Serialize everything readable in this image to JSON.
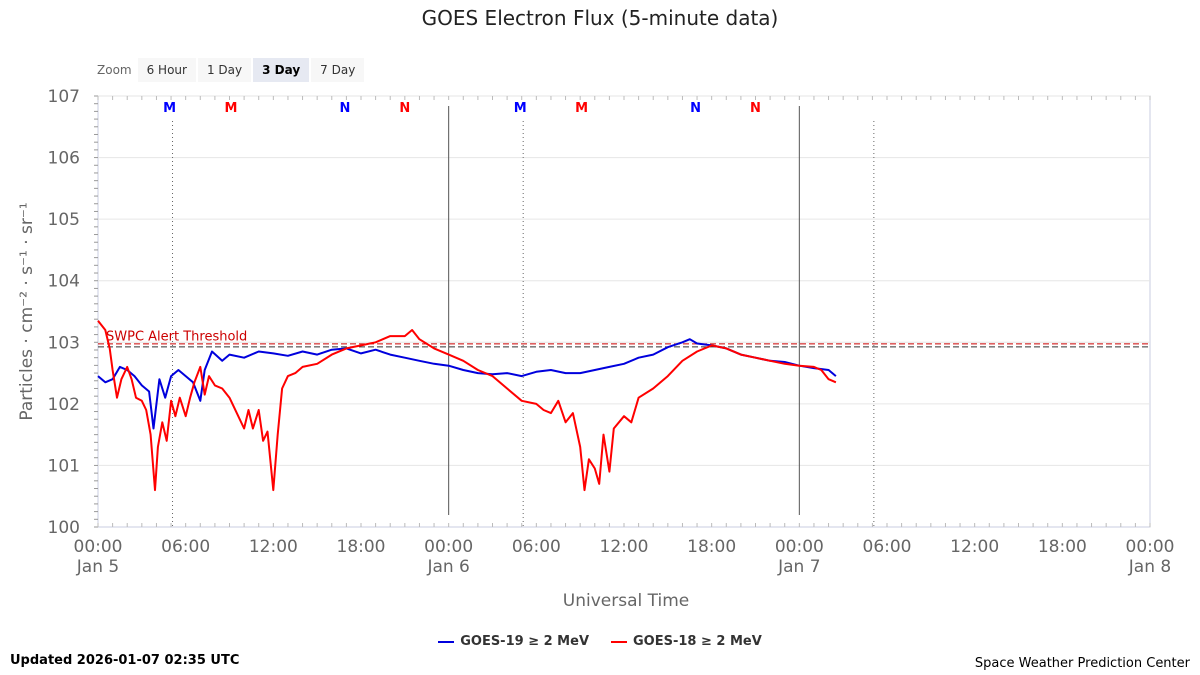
{
  "chart_data": {
    "type": "line",
    "title": "GOES Electron Flux (5-minute data)",
    "xlabel": "Universal Time",
    "ylabel": "Particles · cm⁻² · s⁻¹ · sr⁻¹",
    "y_scale": "log",
    "ylim_exponent": [
      0,
      7
    ],
    "y_ticks": [
      {
        "base": "10",
        "exp": "0"
      },
      {
        "base": "10",
        "exp": "1"
      },
      {
        "base": "10",
        "exp": "2"
      },
      {
        "base": "10",
        "exp": "3"
      },
      {
        "base": "10",
        "exp": "4"
      },
      {
        "base": "10",
        "exp": "5"
      },
      {
        "base": "10",
        "exp": "6"
      },
      {
        "base": "10",
        "exp": "7"
      }
    ],
    "xlim_hours": [
      0,
      72
    ],
    "x_ticks": [
      {
        "hour": 0,
        "time": "00:00",
        "date": "Jan 5"
      },
      {
        "hour": 6,
        "time": "06:00",
        "date": ""
      },
      {
        "hour": 12,
        "time": "12:00",
        "date": ""
      },
      {
        "hour": 18,
        "time": "18:00",
        "date": ""
      },
      {
        "hour": 24,
        "time": "00:00",
        "date": "Jan 6"
      },
      {
        "hour": 30,
        "time": "06:00",
        "date": ""
      },
      {
        "hour": 36,
        "time": "12:00",
        "date": ""
      },
      {
        "hour": 42,
        "time": "18:00",
        "date": ""
      },
      {
        "hour": 48,
        "time": "00:00",
        "date": "Jan 7"
      },
      {
        "hour": 54,
        "time": "06:00",
        "date": ""
      },
      {
        "hour": 60,
        "time": "12:00",
        "date": ""
      },
      {
        "hour": 66,
        "time": "18:00",
        "date": ""
      },
      {
        "hour": 72,
        "time": "00:00",
        "date": "Jan 8"
      }
    ],
    "day_boundaries_hours": [
      24,
      48
    ],
    "local_time_markers": [
      {
        "label": "M",
        "hour": 4.9,
        "color": "#0000ff"
      },
      {
        "label": "M",
        "hour": 9.1,
        "color": "#ff0000"
      },
      {
        "label": "N",
        "hour": 16.9,
        "color": "#0000ff"
      },
      {
        "label": "N",
        "hour": 21.0,
        "color": "#ff0000"
      },
      {
        "label": "M",
        "hour": 28.9,
        "color": "#0000ff"
      },
      {
        "label": "M",
        "hour": 33.1,
        "color": "#ff0000"
      },
      {
        "label": "N",
        "hour": 40.9,
        "color": "#0000ff"
      },
      {
        "label": "N",
        "hour": 45.0,
        "color": "#ff0000"
      }
    ],
    "dotted_lines_hours": [
      5.1,
      29.1,
      53.1
    ],
    "threshold": {
      "label": "SWPC Alert Threshold",
      "exponent": 2.95,
      "color": "#cc0000"
    },
    "series": [
      {
        "name": "GOES-19 ≥ 2 MeV",
        "color": "#0000dd",
        "points": [
          [
            0,
            2.45
          ],
          [
            0.5,
            2.35
          ],
          [
            1,
            2.4
          ],
          [
            1.5,
            2.6
          ],
          [
            2,
            2.55
          ],
          [
            2.5,
            2.45
          ],
          [
            3,
            2.3
          ],
          [
            3.5,
            2.2
          ],
          [
            3.8,
            1.6
          ],
          [
            4.2,
            2.4
          ],
          [
            4.6,
            2.1
          ],
          [
            5,
            2.45
          ],
          [
            5.5,
            2.55
          ],
          [
            6,
            2.45
          ],
          [
            6.5,
            2.35
          ],
          [
            7,
            2.05
          ],
          [
            7.3,
            2.55
          ],
          [
            7.8,
            2.85
          ],
          [
            8.5,
            2.7
          ],
          [
            9,
            2.8
          ],
          [
            10,
            2.75
          ],
          [
            11,
            2.85
          ],
          [
            12,
            2.82
          ],
          [
            13,
            2.78
          ],
          [
            14,
            2.85
          ],
          [
            15,
            2.8
          ],
          [
            16,
            2.88
          ],
          [
            17,
            2.9
          ],
          [
            18,
            2.82
          ],
          [
            19,
            2.88
          ],
          [
            20,
            2.8
          ],
          [
            21,
            2.75
          ],
          [
            22,
            2.7
          ],
          [
            23,
            2.65
          ],
          [
            24,
            2.62
          ],
          [
            25,
            2.55
          ],
          [
            26,
            2.5
          ],
          [
            27,
            2.48
          ],
          [
            28,
            2.5
          ],
          [
            29,
            2.45
          ],
          [
            30,
            2.52
          ],
          [
            31,
            2.55
          ],
          [
            32,
            2.5
          ],
          [
            33,
            2.5
          ],
          [
            34,
            2.55
          ],
          [
            35,
            2.6
          ],
          [
            36,
            2.65
          ],
          [
            37,
            2.75
          ],
          [
            38,
            2.8
          ],
          [
            39,
            2.92
          ],
          [
            40,
            3.0
          ],
          [
            40.5,
            3.05
          ],
          [
            41,
            2.98
          ],
          [
            42,
            2.95
          ],
          [
            43,
            2.9
          ],
          [
            44,
            2.8
          ],
          [
            45,
            2.75
          ],
          [
            46,
            2.7
          ],
          [
            47,
            2.68
          ],
          [
            48,
            2.62
          ],
          [
            49,
            2.58
          ],
          [
            50,
            2.55
          ],
          [
            50.5,
            2.45
          ]
        ]
      },
      {
        "name": "GOES-18 ≥ 2 MeV",
        "color": "#ff0000",
        "points": [
          [
            0,
            3.35
          ],
          [
            0.5,
            3.2
          ],
          [
            0.8,
            2.9
          ],
          [
            1,
            2.55
          ],
          [
            1.3,
            2.1
          ],
          [
            1.6,
            2.4
          ],
          [
            2,
            2.6
          ],
          [
            2.3,
            2.4
          ],
          [
            2.6,
            2.1
          ],
          [
            3,
            2.05
          ],
          [
            3.3,
            1.9
          ],
          [
            3.6,
            1.5
          ],
          [
            3.9,
            0.6
          ],
          [
            4.1,
            1.3
          ],
          [
            4.4,
            1.7
          ],
          [
            4.7,
            1.4
          ],
          [
            5,
            2.05
          ],
          [
            5.3,
            1.8
          ],
          [
            5.6,
            2.1
          ],
          [
            6,
            1.8
          ],
          [
            6.3,
            2.1
          ],
          [
            6.6,
            2.35
          ],
          [
            7,
            2.6
          ],
          [
            7.3,
            2.15
          ],
          [
            7.6,
            2.45
          ],
          [
            8,
            2.3
          ],
          [
            8.5,
            2.25
          ],
          [
            9,
            2.1
          ],
          [
            9.5,
            1.85
          ],
          [
            10,
            1.6
          ],
          [
            10.3,
            1.9
          ],
          [
            10.6,
            1.6
          ],
          [
            11,
            1.9
          ],
          [
            11.3,
            1.4
          ],
          [
            11.6,
            1.55
          ],
          [
            12,
            0.6
          ],
          [
            12.3,
            1.5
          ],
          [
            12.6,
            2.25
          ],
          [
            13,
            2.45
          ],
          [
            13.5,
            2.5
          ],
          [
            14,
            2.6
          ],
          [
            15,
            2.65
          ],
          [
            16,
            2.8
          ],
          [
            17,
            2.9
          ],
          [
            18,
            2.95
          ],
          [
            19,
            3.0
          ],
          [
            20,
            3.1
          ],
          [
            21,
            3.1
          ],
          [
            21.5,
            3.2
          ],
          [
            22,
            3.05
          ],
          [
            23,
            2.9
          ],
          [
            24,
            2.8
          ],
          [
            25,
            2.7
          ],
          [
            26,
            2.55
          ],
          [
            27,
            2.45
          ],
          [
            28,
            2.25
          ],
          [
            29,
            2.05
          ],
          [
            30,
            2.0
          ],
          [
            30.5,
            1.9
          ],
          [
            31,
            1.85
          ],
          [
            31.5,
            2.05
          ],
          [
            32,
            1.7
          ],
          [
            32.5,
            1.85
          ],
          [
            33,
            1.3
          ],
          [
            33.3,
            0.6
          ],
          [
            33.6,
            1.1
          ],
          [
            34,
            0.95
          ],
          [
            34.3,
            0.7
          ],
          [
            34.6,
            1.5
          ],
          [
            35,
            0.9
          ],
          [
            35.3,
            1.6
          ],
          [
            36,
            1.8
          ],
          [
            36.5,
            1.7
          ],
          [
            37,
            2.1
          ],
          [
            38,
            2.25
          ],
          [
            39,
            2.45
          ],
          [
            40,
            2.7
          ],
          [
            41,
            2.85
          ],
          [
            42,
            2.95
          ],
          [
            43,
            2.9
          ],
          [
            44,
            2.8
          ],
          [
            45,
            2.75
          ],
          [
            46,
            2.7
          ],
          [
            47,
            2.65
          ],
          [
            48,
            2.62
          ],
          [
            49,
            2.6
          ],
          [
            49.5,
            2.55
          ],
          [
            50,
            2.4
          ],
          [
            50.5,
            2.35
          ]
        ]
      }
    ]
  },
  "zoom": {
    "label": "Zoom",
    "buttons": [
      {
        "label": "6 Hour",
        "active": false
      },
      {
        "label": "1 Day",
        "active": false
      },
      {
        "label": "3 Day",
        "active": true
      },
      {
        "label": "7 Day",
        "active": false
      }
    ]
  },
  "footer": {
    "updated": "Updated 2026-01-07 02:35 UTC",
    "credit": "Space Weather Prediction Center"
  }
}
